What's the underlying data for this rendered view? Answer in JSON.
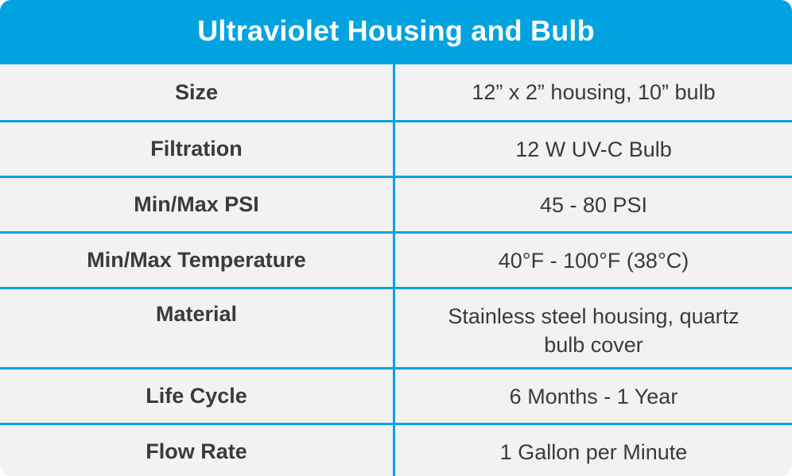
{
  "table": {
    "title": "Ultraviolet Housing and Bulb",
    "accent_color": "#00a3e0",
    "rows": [
      {
        "label": "Size",
        "value": "12” x 2” housing, 10” bulb"
      },
      {
        "label": "Filtration",
        "value": "12 W UV-C Bulb"
      },
      {
        "label": "Min/Max PSI",
        "value": "45 - 80 PSI"
      },
      {
        "label": "Min/Max Temperature",
        "value": "40°F - 100°F (38°C)"
      },
      {
        "label": "Material",
        "value": "Stainless steel housing, quartz bulb cover"
      },
      {
        "label": "Life Cycle",
        "value": "6 Months - 1 Year"
      },
      {
        "label": "Flow Rate",
        "value": "1 Gallon per Minute"
      }
    ]
  }
}
